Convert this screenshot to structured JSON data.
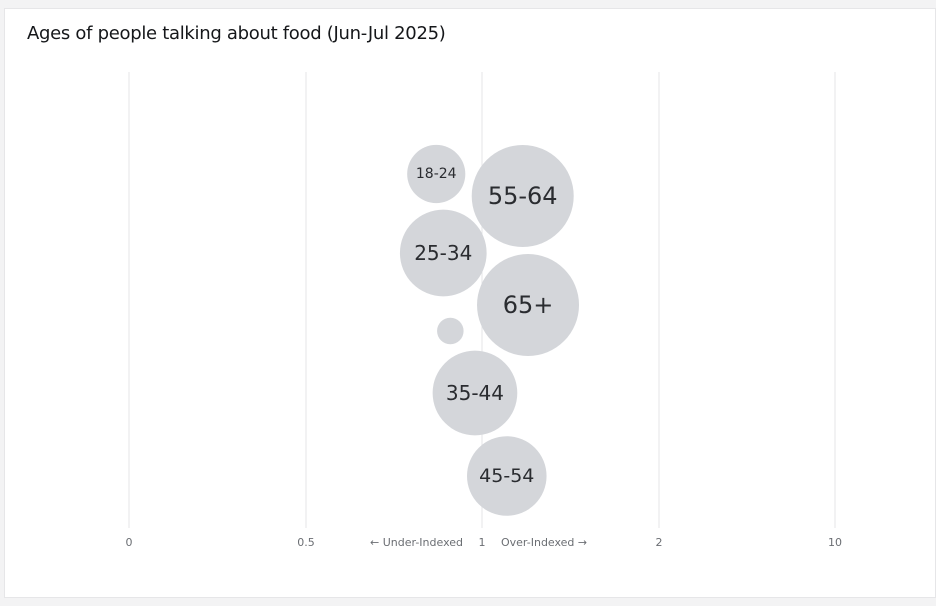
{
  "title": "Ages of people talking about food (Jun-Jul 2025)",
  "chart_data": {
    "type": "scatter",
    "title": "Ages of people talking about food (Jun-Jul 2025)",
    "x_scale": "index",
    "x_ticks": [
      "0",
      "0.5",
      "1",
      "2",
      "10"
    ],
    "x_tick_values": [
      0,
      0.5,
      1,
      2,
      10
    ],
    "under_label": "← Under-Indexed",
    "over_label": "Over-Indexed →",
    "grid": true,
    "bubble_color": "#d4d6da",
    "gridline_color": "#e4e5e7",
    "points": [
      {
        "label": "18-24",
        "index": 0.87,
        "size": 0.57
      },
      {
        "label": "55-64",
        "index": 1.23,
        "size": 1.0
      },
      {
        "label": "25-34",
        "index": 0.89,
        "size": 0.85
      },
      {
        "label": "65+",
        "index": 1.26,
        "size": 1.0
      },
      {
        "label": "",
        "index": 0.91,
        "size": 0.26
      },
      {
        "label": "35-44",
        "index": 0.98,
        "size": 0.83
      },
      {
        "label": "45-54",
        "index": 1.14,
        "size": 0.78
      }
    ]
  }
}
